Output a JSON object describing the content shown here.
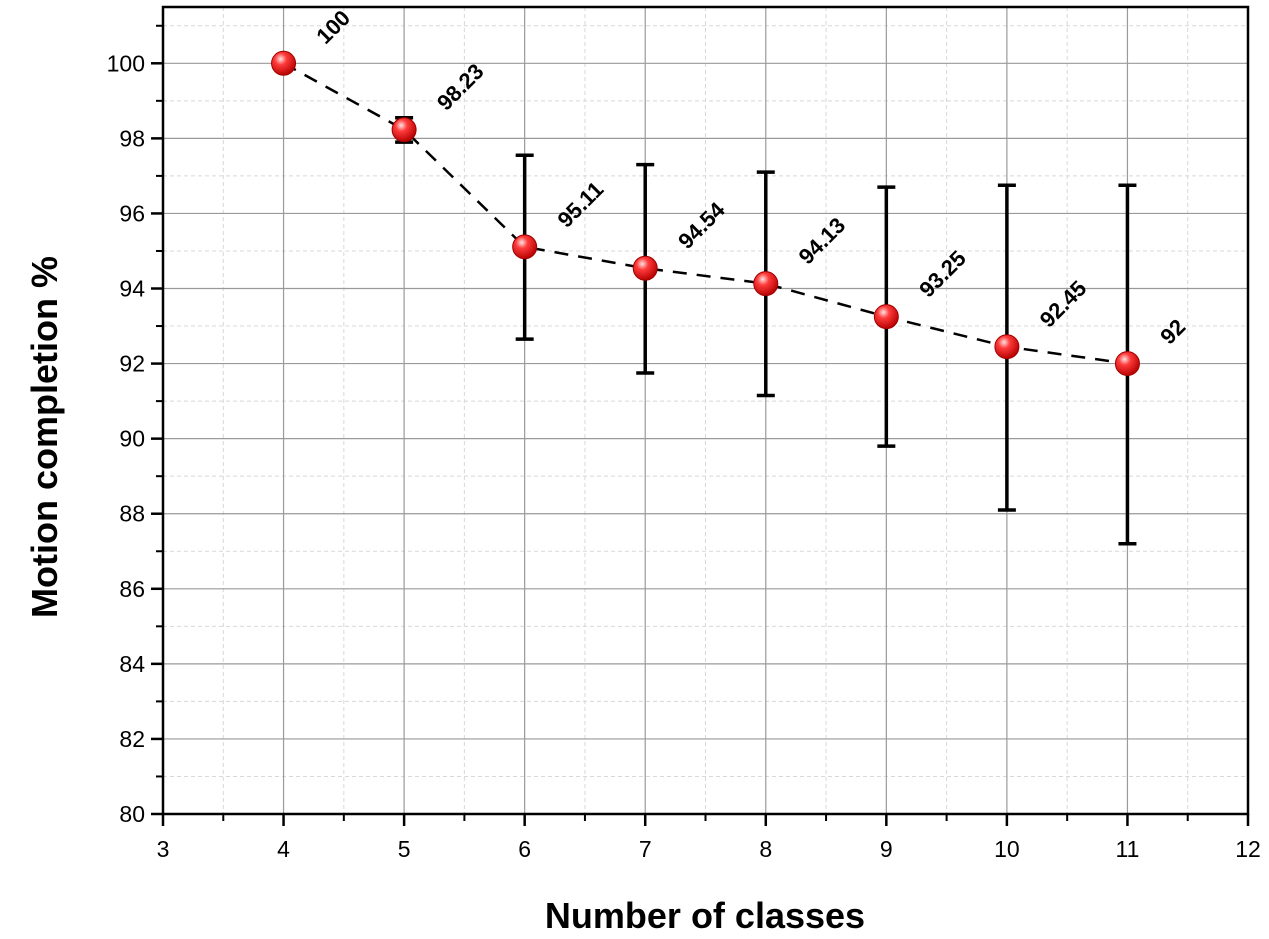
{
  "chart_data": {
    "type": "scatter",
    "xlabel": "Number of classes",
    "ylabel": "Motion completion %",
    "xlim": [
      3,
      12
    ],
    "ylim": [
      80,
      101.5
    ],
    "x_ticks": [
      "3",
      "4",
      "5",
      "6",
      "7",
      "8",
      "9",
      "10",
      "11",
      "12"
    ],
    "y_ticks": [
      "80",
      "82",
      "84",
      "86",
      "88",
      "90",
      "92",
      "94",
      "96",
      "98",
      "100"
    ],
    "grid": true,
    "connecting_line": "dashed",
    "series": [
      {
        "x": [
          4,
          5,
          6,
          7,
          8,
          9,
          10,
          11
        ],
        "y": [
          100,
          98.23,
          95.11,
          94.54,
          94.13,
          93.25,
          92.45,
          92
        ],
        "error_low": [
          100,
          97.9,
          92.65,
          91.75,
          91.15,
          89.8,
          88.1,
          87.2
        ],
        "error_high": [
          100,
          98.55,
          97.55,
          97.3,
          97.1,
          96.7,
          96.75,
          96.75
        ],
        "labels": [
          "100",
          "98.23",
          "95.11",
          "94.54",
          "94.13",
          "93.25",
          "92.45",
          "92"
        ]
      }
    ],
    "colors": {
      "marker": "#e8191c",
      "marker_highlight": "#ffd6d6",
      "line": "#000000",
      "grid_major": "#9a9a9a",
      "grid_minor": "#d8d8d8"
    }
  }
}
